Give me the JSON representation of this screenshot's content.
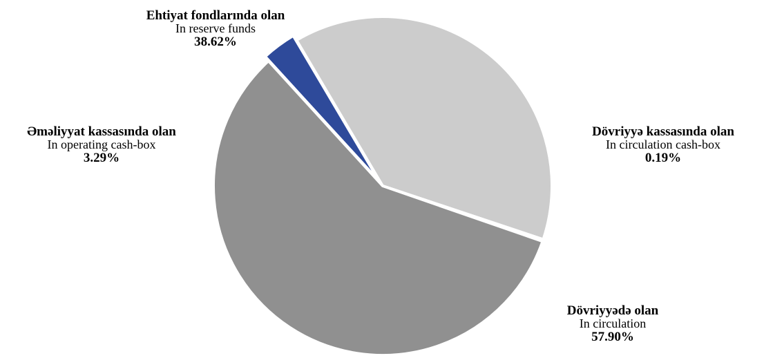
{
  "chart_data": {
    "type": "pie",
    "slices": [
      {
        "label_az": "Ehtiyat fondlarında olan",
        "label_en": "In reserve funds",
        "value": 38.62,
        "value_label": "38.62%",
        "color": "#cccccc"
      },
      {
        "label_az": "Dövriyyə kassasında olan",
        "label_en": "In circulation cash-box",
        "value": 0.19,
        "value_label": "0.19%",
        "color": "#a7a4cf"
      },
      {
        "label_az": "Dövriyyədə olan",
        "label_en": "In circulation",
        "value": 57.9,
        "value_label": "57.90%",
        "color": "#909090"
      },
      {
        "label_az": "Əməliyyat kassasında olan",
        "label_en": "In operating cash-box",
        "value": 3.29,
        "value_label": "3.29%",
        "color": "#2e4a9a"
      }
    ]
  }
}
